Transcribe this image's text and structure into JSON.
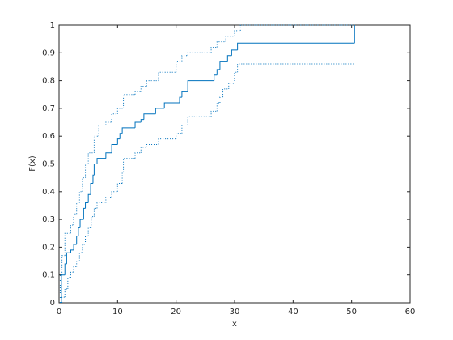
{
  "chart_data": {
    "type": "step",
    "xlabel": "x",
    "ylabel": "F(x)",
    "xlim": [
      0,
      60
    ],
    "xticks": [
      0,
      10,
      20,
      30,
      40,
      50,
      60
    ],
    "ylim": [
      0,
      1
    ],
    "yticks": [
      0,
      0.1,
      0.2,
      0.3,
      0.4,
      0.5,
      0.6,
      0.7,
      0.8,
      0.9,
      1
    ],
    "box": true,
    "series": [
      {
        "color": "#0072bd",
        "linestyle": "solid",
        "x": [
          0.4,
          1.0,
          1.3,
          2.0,
          2.5,
          3.0,
          3.3,
          3.6,
          4.2,
          4.5,
          5.0,
          5.4,
          5.8,
          6.0,
          6.5,
          8.0,
          9.0,
          10.0,
          10.4,
          10.8,
          13.0,
          14.0,
          14.5,
          16.5,
          18.0,
          20.6,
          21.0,
          22.0,
          26.5,
          27.0,
          27.5,
          28.8,
          29.5,
          30.5,
          50.5
        ],
        "values": [
          0.1,
          0.14,
          0.18,
          0.19,
          0.21,
          0.24,
          0.27,
          0.3,
          0.34,
          0.36,
          0.39,
          0.43,
          0.46,
          0.5,
          0.52,
          0.54,
          0.57,
          0.59,
          0.61,
          0.63,
          0.65,
          0.66,
          0.68,
          0.7,
          0.72,
          0.74,
          0.76,
          0.8,
          0.82,
          0.84,
          0.87,
          0.89,
          0.91,
          0.935,
          1.0
        ]
      },
      {
        "color": "#0072bd",
        "linestyle": "dotted",
        "x": [
          0.2,
          0.5,
          1.0,
          2.0,
          2.5,
          3.0,
          3.5,
          4.0,
          4.5,
          5.0,
          6.0,
          6.8,
          8.0,
          9.0,
          10.0,
          11.0,
          13.0,
          14.0,
          15.0,
          17.0,
          20.0,
          21.0,
          22.0,
          26.0,
          27.0,
          28.5,
          30.0,
          31.0,
          50.5
        ],
        "values": [
          0.1,
          0.17,
          0.25,
          0.28,
          0.32,
          0.36,
          0.4,
          0.45,
          0.5,
          0.54,
          0.6,
          0.64,
          0.65,
          0.68,
          0.7,
          0.75,
          0.76,
          0.78,
          0.8,
          0.83,
          0.87,
          0.89,
          0.9,
          0.92,
          0.94,
          0.96,
          0.98,
          1.0,
          1.0
        ]
      },
      {
        "color": "#0072bd",
        "linestyle": "dotted",
        "x": [
          0.5,
          1.0,
          1.5,
          2.0,
          2.5,
          3.0,
          3.5,
          4.0,
          4.5,
          5.0,
          5.5,
          6.0,
          6.5,
          8.0,
          9.0,
          10.0,
          10.8,
          11.0,
          13.0,
          14.0,
          15.0,
          17.0,
          20.0,
          21.0,
          22.0,
          26.0,
          27.0,
          27.5,
          28.0,
          29.0,
          30.0,
          30.5,
          50.5
        ],
        "values": [
          0.02,
          0.05,
          0.09,
          0.11,
          0.13,
          0.15,
          0.18,
          0.21,
          0.24,
          0.27,
          0.31,
          0.34,
          0.36,
          0.38,
          0.4,
          0.43,
          0.47,
          0.52,
          0.54,
          0.56,
          0.57,
          0.59,
          0.61,
          0.64,
          0.67,
          0.69,
          0.72,
          0.74,
          0.77,
          0.79,
          0.83,
          0.86,
          0.86
        ]
      }
    ]
  }
}
